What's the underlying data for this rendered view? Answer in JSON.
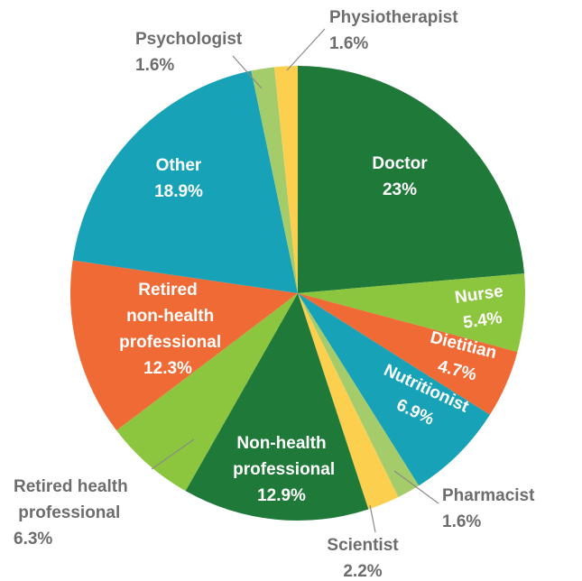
{
  "chart_data": {
    "type": "pie",
    "categories": [
      "Doctor",
      "Nurse",
      "Dietitian",
      "Nutritionist",
      "Pharmacist",
      "Scientist",
      "Non-health professional",
      "Retired health professional",
      "Retired non-health professional",
      "Other",
      "Psychologist",
      "Physiotherapist"
    ],
    "values": [
      23,
      5.4,
      4.7,
      6.9,
      1.6,
      2.2,
      12.9,
      6.3,
      12.3,
      18.9,
      1.6,
      1.6
    ],
    "value_labels": [
      "23%",
      "5.4%",
      "4.7%",
      "6.9%",
      "1.6%",
      "2.2%",
      "12.9%",
      "6.3%",
      "12.3%",
      "18.9%",
      "1.6%",
      "1.6%"
    ],
    "colors": [
      "#1f7a3a",
      "#8cc63e",
      "#f06a35",
      "#17a2b8",
      "#a5cc6b",
      "#fdcf4e",
      "#1f7a3a",
      "#8cc63e",
      "#f06a35",
      "#17a2b8",
      "#a5cc6b",
      "#fdcf4e"
    ]
  }
}
